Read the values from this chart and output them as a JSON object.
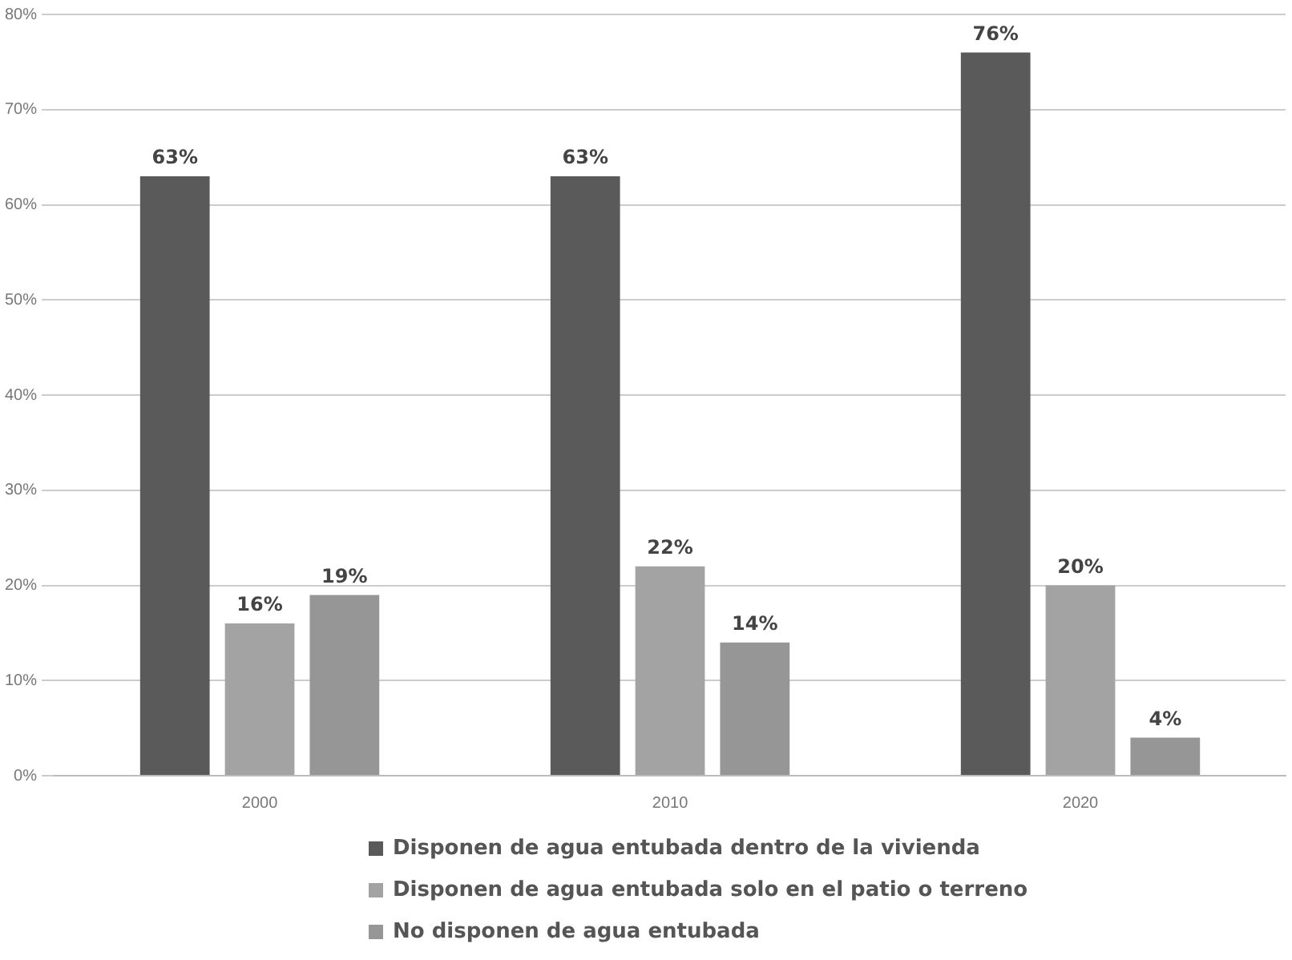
{
  "chart_data": {
    "type": "bar",
    "categories": [
      "2000",
      "2010",
      "2020"
    ],
    "series": [
      {
        "name": "Disponen de agua entubada dentro de la vivienda",
        "color": "#5a5a5a",
        "values": [
          63,
          63,
          76
        ]
      },
      {
        "name": "Disponen de agua entubada solo en el patio o terreno",
        "color": "#a3a3a3",
        "values": [
          16,
          22,
          20
        ]
      },
      {
        "name": "No disponen de agua entubada",
        "color": "#969696",
        "values": [
          19,
          14,
          4
        ]
      }
    ],
    "ylim": [
      0,
      80
    ],
    "yticks": [
      {
        "value": 0,
        "label": "0%"
      },
      {
        "value": 10,
        "label": "10%"
      },
      {
        "value": 20,
        "label": "20%"
      },
      {
        "value": 30,
        "label": "30%"
      },
      {
        "value": 40,
        "label": "40%"
      },
      {
        "value": 50,
        "label": "50%"
      },
      {
        "value": 60,
        "label": "60%"
      },
      {
        "value": 70,
        "label": "70%"
      },
      {
        "value": 80,
        "label": "80%"
      }
    ],
    "value_labels": [
      [
        "63%",
        "63%",
        "76%"
      ],
      [
        "16%",
        "22%",
        "20%"
      ],
      [
        "19%",
        "14%",
        "4%"
      ]
    ],
    "grid": "y",
    "legend": "bottom"
  }
}
